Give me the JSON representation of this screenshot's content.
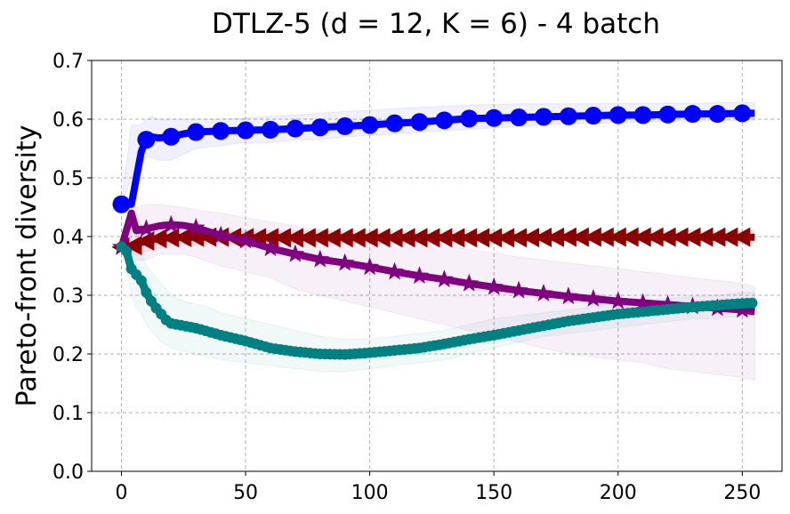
{
  "chart_data": {
    "type": "line",
    "title": "DTLZ-5 (d = 12, K = 6) - 4 batch",
    "xlabel": "",
    "ylabel": "Pareto-front diversity",
    "xlim": [
      -12,
      266
    ],
    "ylim": [
      0.0,
      0.7
    ],
    "xticks": [
      0,
      50,
      100,
      150,
      200,
      250
    ],
    "yticks": [
      0.0,
      0.1,
      0.2,
      0.3,
      0.4,
      0.5,
      0.6,
      0.7
    ],
    "xtick_labels": [
      "0",
      "50",
      "100",
      "150",
      "200",
      "250"
    ],
    "ytick_labels": [
      "0.0",
      "0.1",
      "0.2",
      "0.3",
      "0.4",
      "0.5",
      "0.6",
      "0.7"
    ],
    "grid": true,
    "series": [
      {
        "name": "blue-circle",
        "color": "#0000ff",
        "marker": "circle",
        "x": [
          0,
          4,
          8,
          10,
          12,
          15,
          20,
          25,
          30,
          40,
          50,
          60,
          70,
          80,
          90,
          100,
          110,
          120,
          130,
          140,
          150,
          160,
          170,
          180,
          190,
          200,
          210,
          220,
          230,
          240,
          250,
          255
        ],
        "y": [
          0.455,
          0.455,
          0.545,
          0.565,
          0.57,
          0.568,
          0.57,
          0.575,
          0.578,
          0.58,
          0.581,
          0.582,
          0.584,
          0.586,
          0.588,
          0.59,
          0.593,
          0.595,
          0.598,
          0.601,
          0.602,
          0.603,
          0.604,
          0.605,
          0.606,
          0.607,
          0.607,
          0.608,
          0.609,
          0.609,
          0.61,
          0.61
        ],
        "band_lower": [
          0.455,
          0.5,
          0.53,
          0.535,
          0.535,
          0.53,
          0.53,
          0.54,
          0.55,
          0.555,
          0.56,
          0.56,
          0.565,
          0.565,
          0.57,
          0.572,
          0.575,
          0.578,
          0.58,
          0.583,
          0.585,
          0.588,
          0.59,
          0.592,
          0.593,
          0.594,
          0.595,
          0.596,
          0.597,
          0.597,
          0.598,
          0.598
        ],
        "band_upper": [
          0.455,
          0.59,
          0.59,
          0.6,
          0.605,
          0.6,
          0.6,
          0.6,
          0.6,
          0.6,
          0.602,
          0.605,
          0.607,
          0.61,
          0.613,
          0.615,
          0.618,
          0.62,
          0.622,
          0.624,
          0.625,
          0.626,
          0.626,
          0.626,
          0.626,
          0.627,
          0.627,
          0.627,
          0.627,
          0.628,
          0.628,
          0.628
        ],
        "marker_x": [
          0,
          10,
          20,
          30,
          40,
          50,
          60,
          70,
          80,
          90,
          100,
          110,
          120,
          130,
          140,
          150,
          160,
          170,
          180,
          190,
          200,
          210,
          220,
          230,
          240,
          250
        ]
      },
      {
        "name": "darkred-triangle",
        "color": "#8b0000",
        "marker": "triangle-left",
        "x": [
          0,
          4,
          8,
          12,
          16,
          20,
          30,
          40,
          50,
          60,
          80,
          100,
          120,
          140,
          160,
          180,
          200,
          220,
          240,
          255
        ],
        "y": [
          0.382,
          0.383,
          0.39,
          0.395,
          0.397,
          0.398,
          0.399,
          0.399,
          0.398,
          0.398,
          0.398,
          0.398,
          0.398,
          0.398,
          0.398,
          0.399,
          0.399,
          0.399,
          0.399,
          0.399
        ],
        "band_lower": [
          0.382,
          0.37,
          0.37,
          0.38,
          0.38,
          0.385,
          0.385,
          0.39,
          0.39,
          0.39,
          0.39,
          0.39,
          0.39,
          0.39,
          0.39,
          0.39,
          0.39,
          0.39,
          0.39,
          0.39
        ],
        "band_upper": [
          0.382,
          0.4,
          0.41,
          0.41,
          0.41,
          0.41,
          0.41,
          0.41,
          0.41,
          0.41,
          0.41,
          0.41,
          0.41,
          0.41,
          0.41,
          0.41,
          0.41,
          0.41,
          0.41,
          0.41
        ],
        "marker_x": [
          0,
          5,
          10,
          15,
          20,
          25,
          30,
          35,
          40,
          45,
          50,
          55,
          60,
          65,
          70,
          75,
          80,
          85,
          90,
          95,
          100,
          105,
          110,
          115,
          120,
          125,
          130,
          135,
          140,
          145,
          150,
          155,
          160,
          165,
          170,
          175,
          180,
          185,
          190,
          195,
          200,
          205,
          210,
          215,
          220,
          225,
          230,
          235,
          240,
          245,
          250
        ]
      },
      {
        "name": "purple-star",
        "color": "#800080",
        "marker": "star",
        "x": [
          0,
          4,
          6,
          10,
          15,
          20,
          25,
          30,
          40,
          50,
          60,
          70,
          80,
          90,
          100,
          110,
          120,
          130,
          140,
          150,
          160,
          170,
          180,
          190,
          200,
          210,
          220,
          230,
          240,
          250,
          255
        ],
        "y": [
          0.382,
          0.44,
          0.41,
          0.413,
          0.418,
          0.42,
          0.419,
          0.415,
          0.402,
          0.393,
          0.38,
          0.37,
          0.361,
          0.355,
          0.348,
          0.34,
          0.333,
          0.327,
          0.32,
          0.314,
          0.308,
          0.303,
          0.298,
          0.294,
          0.29,
          0.287,
          0.284,
          0.281,
          0.278,
          0.275,
          0.272
        ],
        "band_lower": [
          0.382,
          0.37,
          0.36,
          0.36,
          0.37,
          0.37,
          0.37,
          0.365,
          0.35,
          0.34,
          0.33,
          0.31,
          0.3,
          0.29,
          0.28,
          0.27,
          0.26,
          0.25,
          0.24,
          0.23,
          0.22,
          0.21,
          0.2,
          0.195,
          0.19,
          0.185,
          0.175,
          0.17,
          0.165,
          0.16,
          0.155
        ],
        "band_upper": [
          0.382,
          0.45,
          0.45,
          0.455,
          0.455,
          0.452,
          0.45,
          0.445,
          0.44,
          0.432,
          0.425,
          0.418,
          0.41,
          0.405,
          0.4,
          0.395,
          0.39,
          0.385,
          0.378,
          0.372,
          0.365,
          0.36,
          0.355,
          0.35,
          0.345,
          0.34,
          0.335,
          0.33,
          0.325,
          0.32,
          0.315
        ],
        "marker_x": [
          0,
          10,
          20,
          30,
          40,
          50,
          60,
          70,
          80,
          90,
          100,
          110,
          120,
          130,
          140,
          150,
          160,
          170,
          180,
          190,
          200,
          210,
          220,
          230,
          240,
          250
        ]
      },
      {
        "name": "teal-circle",
        "color": "#008080",
        "marker": "circle-small",
        "x": [
          0,
          2,
          4,
          6,
          8,
          10,
          12,
          14,
          16,
          18,
          20,
          25,
          30,
          35,
          40,
          50,
          60,
          70,
          80,
          90,
          100,
          110,
          120,
          130,
          140,
          150,
          160,
          170,
          180,
          190,
          200,
          210,
          220,
          230,
          240,
          250,
          255
        ],
        "y": [
          0.383,
          0.375,
          0.345,
          0.335,
          0.325,
          0.305,
          0.29,
          0.278,
          0.268,
          0.258,
          0.252,
          0.248,
          0.244,
          0.238,
          0.232,
          0.222,
          0.21,
          0.204,
          0.2,
          0.199,
          0.202,
          0.206,
          0.21,
          0.217,
          0.225,
          0.232,
          0.24,
          0.248,
          0.256,
          0.262,
          0.268,
          0.272,
          0.276,
          0.28,
          0.283,
          0.286,
          0.287
        ],
        "band_lower": [
          0.383,
          0.35,
          0.3,
          0.28,
          0.27,
          0.25,
          0.24,
          0.23,
          0.22,
          0.215,
          0.21,
          0.205,
          0.2,
          0.195,
          0.19,
          0.185,
          0.18,
          0.175,
          0.17,
          0.17,
          0.175,
          0.18,
          0.185,
          0.19,
          0.2,
          0.21,
          0.22,
          0.23,
          0.235,
          0.24,
          0.245,
          0.25,
          0.255,
          0.26,
          0.26,
          0.265,
          0.265
        ],
        "band_upper": [
          0.383,
          0.4,
          0.39,
          0.38,
          0.37,
          0.35,
          0.34,
          0.33,
          0.32,
          0.31,
          0.3,
          0.29,
          0.285,
          0.28,
          0.27,
          0.26,
          0.25,
          0.24,
          0.23,
          0.225,
          0.225,
          0.23,
          0.235,
          0.24,
          0.25,
          0.26,
          0.265,
          0.27,
          0.275,
          0.28,
          0.285,
          0.29,
          0.295,
          0.298,
          0.3,
          0.305,
          0.305
        ],
        "marker_x": [
          0,
          2,
          4,
          6,
          8,
          10,
          12,
          14,
          16,
          18,
          20,
          22,
          24,
          26,
          28,
          30,
          32,
          34,
          36,
          38,
          40,
          42,
          44,
          46,
          48,
          50,
          52,
          54,
          56,
          58,
          60,
          62,
          64,
          66,
          68,
          70,
          72,
          74,
          76,
          78,
          80,
          82,
          84,
          86,
          88,
          90,
          92,
          94,
          96,
          98,
          100,
          102,
          104,
          106,
          108,
          110,
          112,
          114,
          116,
          118,
          120,
          122,
          124,
          126,
          128,
          130,
          132,
          134,
          136,
          138,
          140,
          142,
          144,
          146,
          148,
          150,
          152,
          154,
          156,
          158,
          160,
          162,
          164,
          166,
          168,
          170,
          172,
          174,
          176,
          178,
          180,
          182,
          184,
          186,
          188,
          190,
          192,
          194,
          196,
          198,
          200,
          202,
          204,
          206,
          208,
          210,
          212,
          214,
          216,
          218,
          220,
          222,
          224,
          226,
          228,
          230,
          232,
          234,
          236,
          238,
          240,
          242,
          244,
          246,
          248,
          250,
          252,
          254
        ]
      }
    ]
  }
}
